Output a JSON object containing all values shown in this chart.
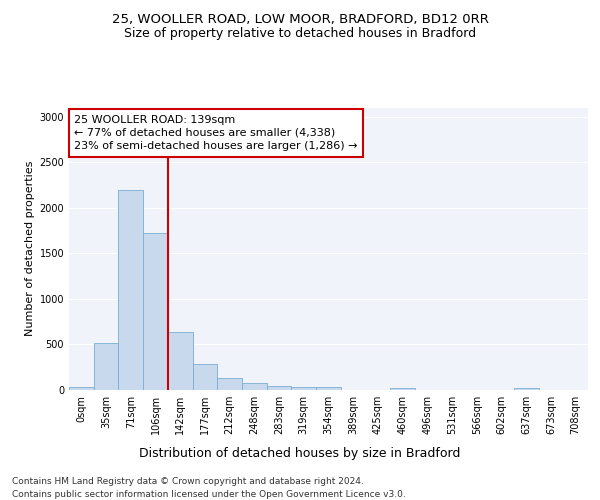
{
  "title1": "25, WOOLLER ROAD, LOW MOOR, BRADFORD, BD12 0RR",
  "title2": "Size of property relative to detached houses in Bradford",
  "xlabel": "Distribution of detached houses by size in Bradford",
  "ylabel": "Number of detached properties",
  "bin_labels": [
    "0sqm",
    "35sqm",
    "71sqm",
    "106sqm",
    "142sqm",
    "177sqm",
    "212sqm",
    "248sqm",
    "283sqm",
    "319sqm",
    "354sqm",
    "389sqm",
    "425sqm",
    "460sqm",
    "496sqm",
    "531sqm",
    "566sqm",
    "602sqm",
    "637sqm",
    "673sqm",
    "708sqm"
  ],
  "bar_heights": [
    30,
    520,
    2190,
    1720,
    640,
    290,
    130,
    75,
    45,
    35,
    35,
    0,
    0,
    25,
    0,
    0,
    0,
    0,
    20,
    0,
    0
  ],
  "bar_color": "#c8d9ee",
  "bar_edge_color": "#7aafd4",
  "vline_color": "#cc0000",
  "annotation_text": "25 WOOLLER ROAD: 139sqm\n← 77% of detached houses are smaller (4,338)\n23% of semi-detached houses are larger (1,286) →",
  "annotation_box_color": "#ffffff",
  "annotation_box_edge": "#cc0000",
  "ylim": [
    0,
    3100
  ],
  "yticks": [
    0,
    500,
    1000,
    1500,
    2000,
    2500,
    3000
  ],
  "bg_color": "#f0f4fa",
  "footnote": "Contains HM Land Registry data © Crown copyright and database right 2024.\nContains public sector information licensed under the Open Government Licence v3.0.",
  "title1_fontsize": 9.5,
  "title2_fontsize": 9,
  "xlabel_fontsize": 9,
  "ylabel_fontsize": 8,
  "tick_fontsize": 7,
  "annot_fontsize": 8,
  "footnote_fontsize": 6.5
}
